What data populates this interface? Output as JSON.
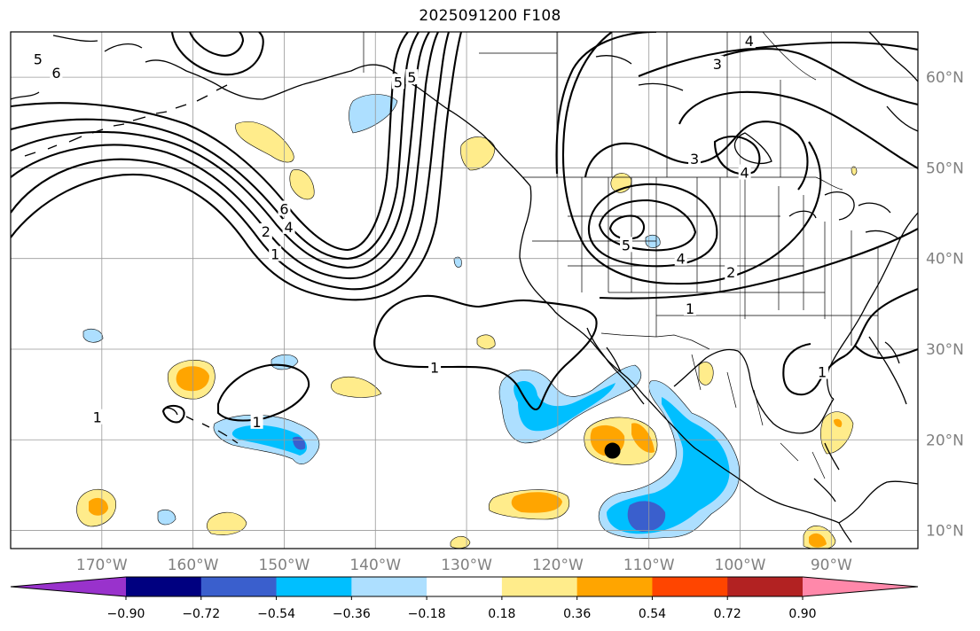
{
  "title": "2025091200 F108",
  "map": {
    "projection": "equirectangular",
    "extent_deg": {
      "lon_min": -180,
      "lon_max": -80.5,
      "lat_min": 8,
      "lat_max": 65
    },
    "gridlines": true,
    "lon_ticks": [
      {
        "value": -170,
        "label": "170°W"
      },
      {
        "value": -160,
        "label": "160°W"
      },
      {
        "value": -150,
        "label": "150°W"
      },
      {
        "value": -140,
        "label": "140°W"
      },
      {
        "value": -130,
        "label": "130°W"
      },
      {
        "value": -120,
        "label": "120°W"
      },
      {
        "value": -110,
        "label": "110°W"
      },
      {
        "value": -100,
        "label": "100°W"
      },
      {
        "value": -90,
        "label": "90°W"
      }
    ],
    "lat_ticks": [
      {
        "value": 60,
        "label": "60°N"
      },
      {
        "value": 50,
        "label": "50°N"
      },
      {
        "value": 40,
        "label": "40°N"
      },
      {
        "value": 30,
        "label": "30°N"
      },
      {
        "value": 20,
        "label": "20°N"
      },
      {
        "value": 10,
        "label": "10°N"
      }
    ],
    "contour_labels": [
      {
        "text": "5",
        "lon": -177,
        "lat": 62
      },
      {
        "text": "6",
        "lon": -175,
        "lat": 60.5
      },
      {
        "text": "6",
        "lon": -150,
        "lat": 45.5
      },
      {
        "text": "4",
        "lon": -149.5,
        "lat": 43.5
      },
      {
        "text": "2",
        "lon": -152,
        "lat": 43
      },
      {
        "text": "1",
        "lon": -151,
        "lat": 40.5
      },
      {
        "text": "5",
        "lon": -137.5,
        "lat": 59.5
      },
      {
        "text": "5",
        "lon": -136,
        "lat": 60
      },
      {
        "text": "4",
        "lon": -99,
        "lat": 64
      },
      {
        "text": "3",
        "lon": -102.5,
        "lat": 61.5
      },
      {
        "text": "3",
        "lon": -105,
        "lat": 51
      },
      {
        "text": "4",
        "lon": -99.5,
        "lat": 49.5
      },
      {
        "text": "5",
        "lon": -112.5,
        "lat": 41.5
      },
      {
        "text": "4",
        "lon": -106.5,
        "lat": 40
      },
      {
        "text": "2",
        "lon": -101,
        "lat": 38.5
      },
      {
        "text": "1",
        "lon": -105.5,
        "lat": 34.5
      },
      {
        "text": "1",
        "lon": -133.5,
        "lat": 28
      },
      {
        "text": "1",
        "lon": -153,
        "lat": 22
      },
      {
        "text": "1",
        "lon": -170.5,
        "lat": 22.5
      },
      {
        "text": "1",
        "lon": -91,
        "lat": 27.5
      }
    ],
    "marker": {
      "name": "storm-center",
      "lon": -114,
      "lat": 18.8,
      "color": "#000000"
    }
  },
  "colorbar": {
    "extend": "both",
    "under_color": "#9932CC",
    "over_color": "#FF88AA",
    "colors": [
      "#000080",
      "#3A5FCD",
      "#00BFFF",
      "#ADDFFF",
      "#FFFFFF",
      "#FFEC8B",
      "#FFA500",
      "#FF4500",
      "#B22222"
    ],
    "tick_labels": [
      "−0.90",
      "−0.72",
      "−0.54",
      "−0.36",
      "−0.18",
      "0.18",
      "0.36",
      "0.54",
      "0.72",
      "0.90"
    ]
  }
}
